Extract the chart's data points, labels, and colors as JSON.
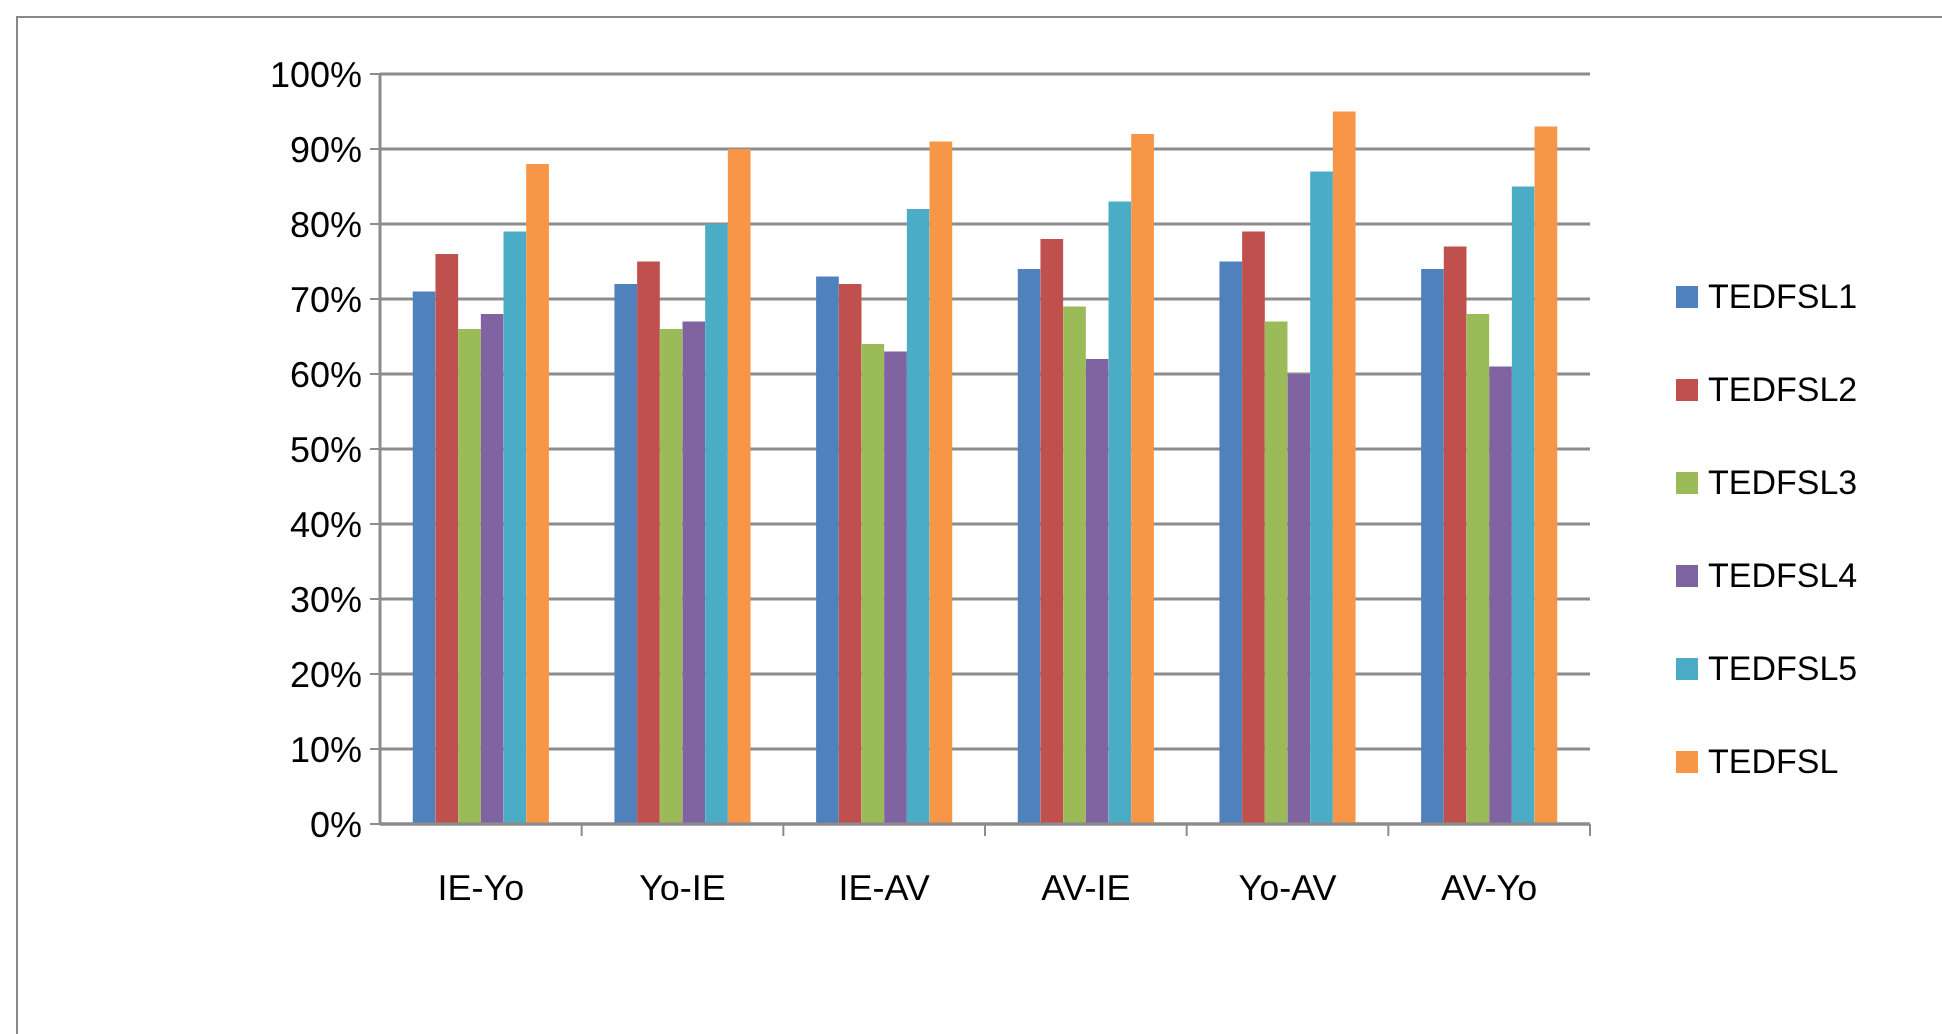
{
  "chart_data": {
    "type": "bar",
    "categories": [
      "IE-Yo",
      "Yo-IE",
      "IE-AV",
      "AV-IE",
      "Yo-AV",
      "AV-Yo"
    ],
    "series": [
      {
        "name": "TEDFSL1",
        "color": "#4f81bd",
        "values": [
          71,
          72,
          73,
          74,
          75,
          74
        ]
      },
      {
        "name": "TEDFSL2",
        "color": "#c0504d",
        "values": [
          76,
          75,
          72,
          78,
          79,
          77
        ]
      },
      {
        "name": "TEDFSL3",
        "color": "#9bbb59",
        "values": [
          66,
          66,
          64,
          69,
          67,
          68
        ]
      },
      {
        "name": "TEDFSL4",
        "color": "#8064a2",
        "values": [
          68,
          67,
          63,
          62,
          60,
          61
        ]
      },
      {
        "name": "TEDFSL5",
        "color": "#4bacc6",
        "values": [
          79,
          80,
          82,
          83,
          87,
          85
        ]
      },
      {
        "name": "TEDFSL",
        "color": "#f79646",
        "values": [
          88,
          90,
          91,
          92,
          95,
          93
        ]
      }
    ],
    "ylim": [
      0,
      100
    ],
    "yticks": [
      {
        "value": 0,
        "label": "0%"
      },
      {
        "value": 10,
        "label": "10%"
      },
      {
        "value": 20,
        "label": "20%"
      },
      {
        "value": 30,
        "label": "30%"
      },
      {
        "value": 40,
        "label": "40%"
      },
      {
        "value": 50,
        "label": "50%"
      },
      {
        "value": 60,
        "label": "60%"
      },
      {
        "value": 70,
        "label": "70%"
      },
      {
        "value": 80,
        "label": "80%"
      },
      {
        "value": 90,
        "label": "90%"
      },
      {
        "value": 100,
        "label": "100%"
      }
    ],
    "grid": "y",
    "legend": "right"
  }
}
